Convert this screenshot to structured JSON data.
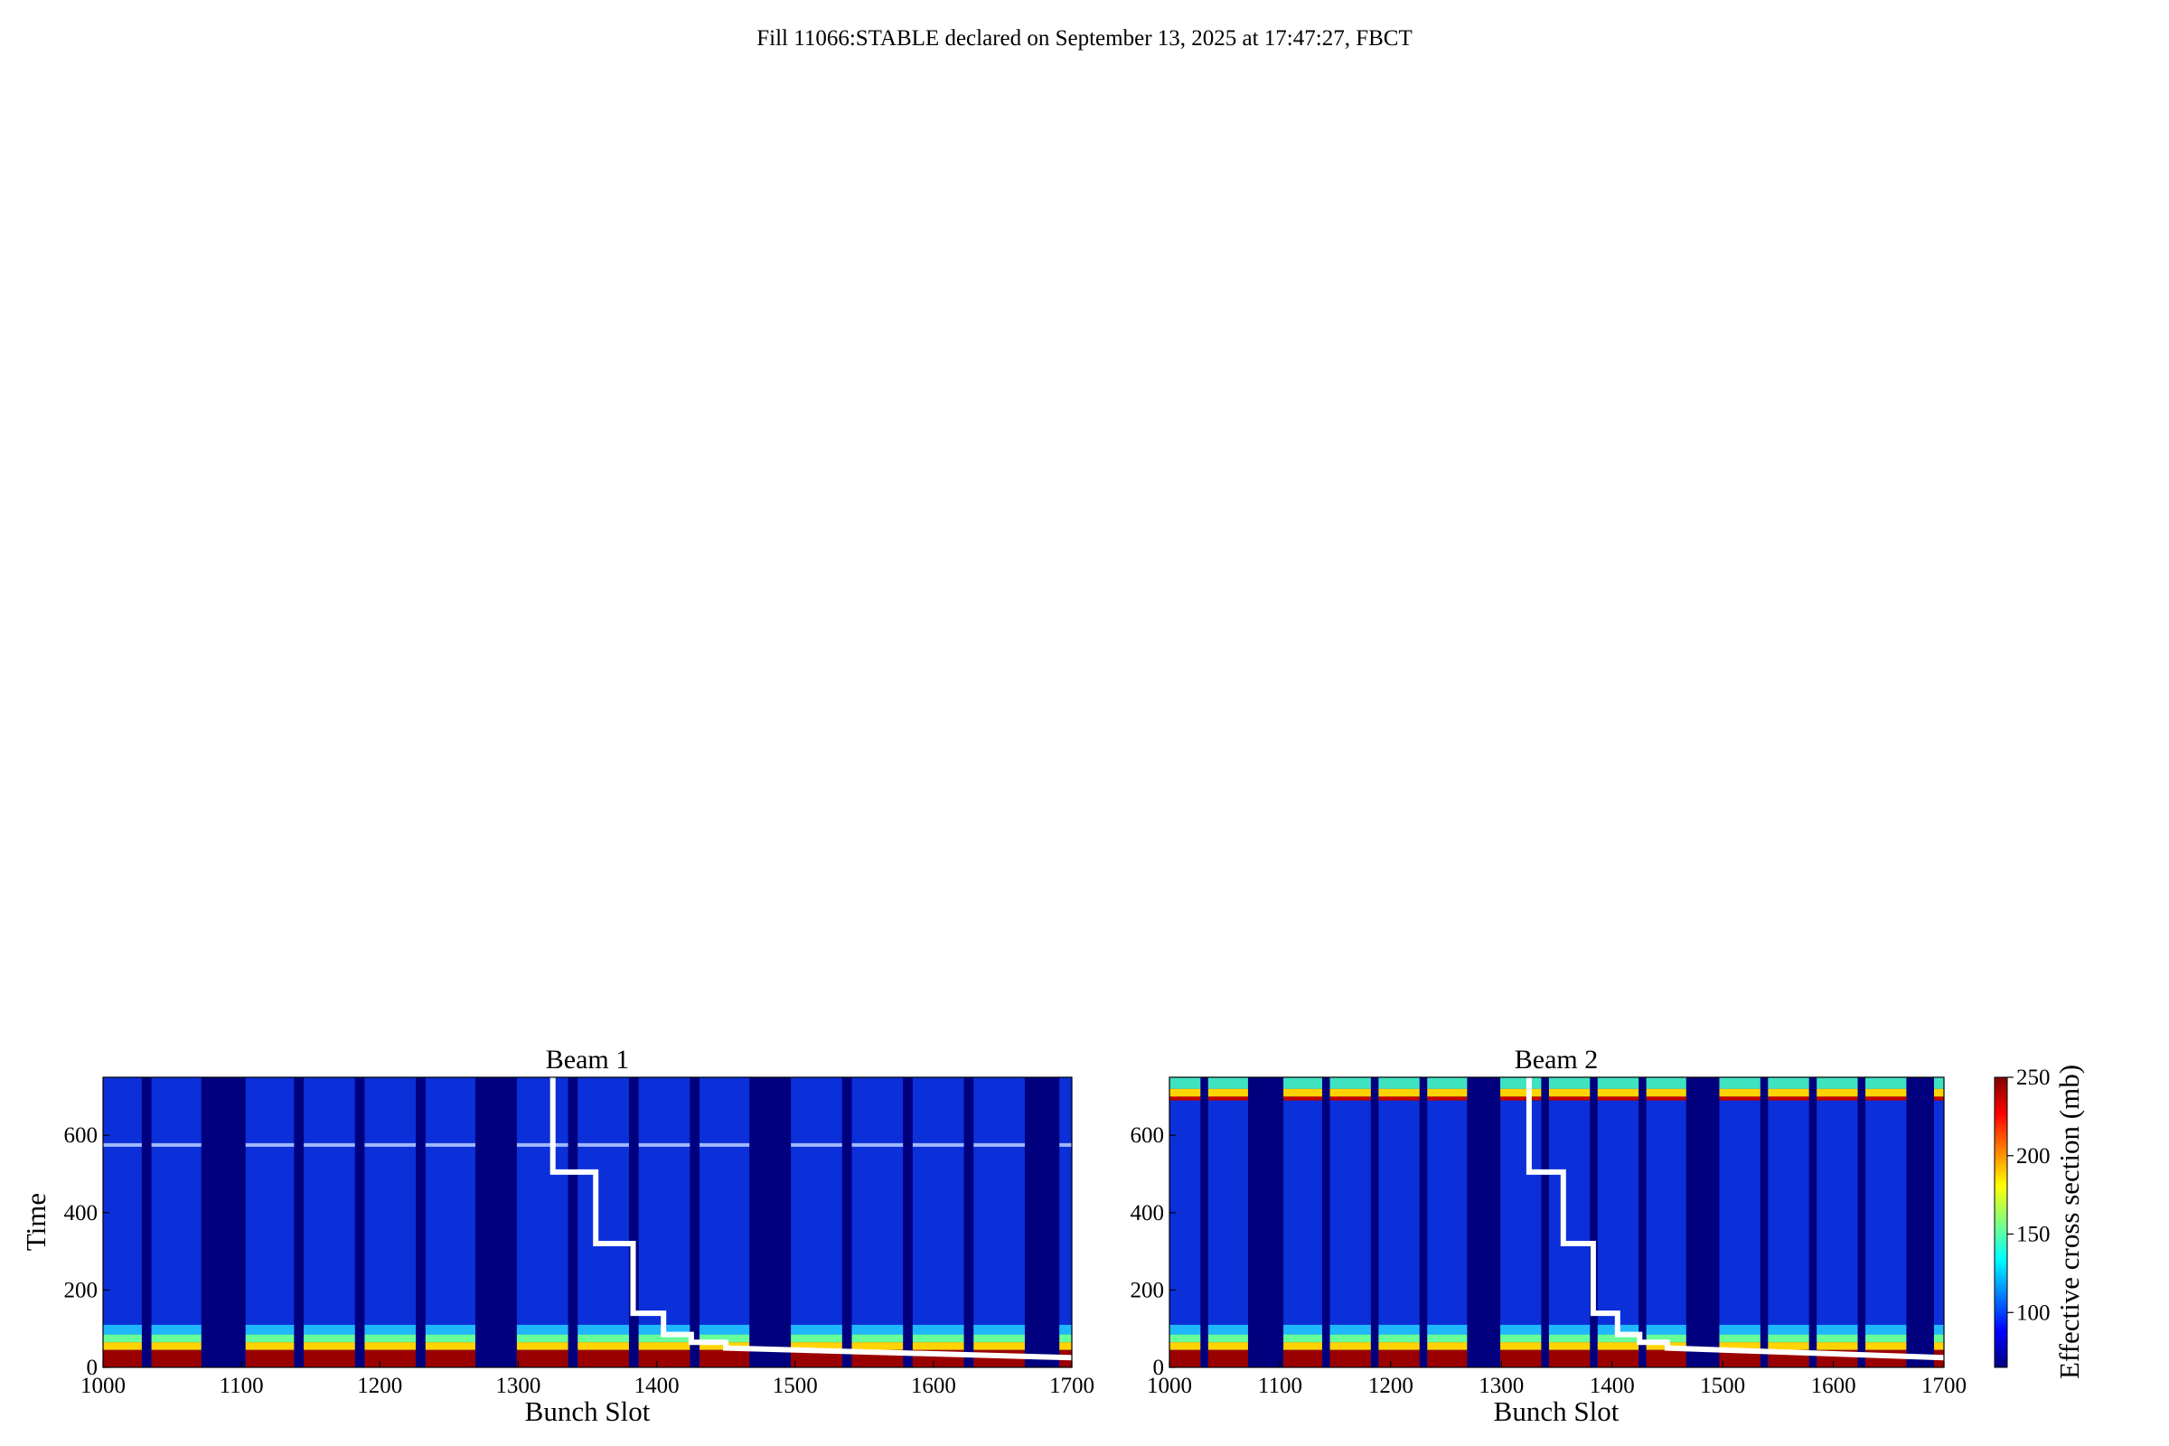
{
  "figure": {
    "suptitle": "Fill 11066:STABLE declared on September 13, 2025 at 17:47:27, FBCT"
  },
  "colors": {
    "background": "#ffffff",
    "gap": "#00007f",
    "low": "#0b2fd9",
    "curve": "#ffffff"
  },
  "colorbar": {
    "label": "Effective cross section (mb)",
    "range": [
      65,
      250
    ],
    "ticks": [
      "100",
      "150",
      "200",
      "250"
    ],
    "tick_values": [
      100,
      150,
      200,
      250
    ]
  },
  "chart_data": [
    {
      "type": "heatmap",
      "title": "Beam 1",
      "xlabel": "Bunch Slot",
      "ylabel": "Time",
      "xlim": [
        1000,
        1700
      ],
      "ylim": [
        0,
        750
      ],
      "xticks": [
        "1000",
        "1100",
        "1200",
        "1300",
        "1400",
        "1500",
        "1600",
        "1700"
      ],
      "yticks": [
        "0",
        "200",
        "400",
        "600"
      ],
      "filled_trains": [
        [
          1000,
          1028
        ],
        [
          1035,
          1071
        ],
        [
          1103,
          1138
        ],
        [
          1145,
          1182
        ],
        [
          1189,
          1226
        ],
        [
          1233,
          1269
        ],
        [
          1299,
          1336
        ],
        [
          1343,
          1380
        ],
        [
          1387,
          1424
        ],
        [
          1431,
          1467
        ],
        [
          1497,
          1534
        ],
        [
          1541,
          1578
        ],
        [
          1585,
          1622
        ],
        [
          1629,
          1666
        ],
        [
          1691,
          1700
        ]
      ],
      "horizontal_band_time": 575,
      "survival_curve": {
        "x": [
          1325,
          1325,
          1356,
          1356,
          1383,
          1383,
          1405,
          1405,
          1425,
          1425,
          1450,
          1450,
          1700
        ],
        "y": [
          750,
          505,
          505,
          320,
          320,
          140,
          140,
          85,
          85,
          65,
          65,
          50,
          25
        ]
      }
    },
    {
      "type": "heatmap",
      "title": "Beam 2",
      "xlabel": "Bunch Slot",
      "ylabel": "",
      "xlim": [
        1000,
        1700
      ],
      "ylim": [
        0,
        750
      ],
      "xticks": [
        "1000",
        "1100",
        "1200",
        "1300",
        "1400",
        "1500",
        "1600",
        "1700"
      ],
      "yticks": [
        "0",
        "200",
        "400",
        "600"
      ],
      "filled_trains": [
        [
          1000,
          1028
        ],
        [
          1035,
          1071
        ],
        [
          1103,
          1138
        ],
        [
          1145,
          1182
        ],
        [
          1189,
          1226
        ],
        [
          1233,
          1269
        ],
        [
          1299,
          1336
        ],
        [
          1343,
          1380
        ],
        [
          1387,
          1424
        ],
        [
          1431,
          1467
        ],
        [
          1497,
          1534
        ],
        [
          1541,
          1578
        ],
        [
          1585,
          1622
        ],
        [
          1629,
          1666
        ],
        [
          1691,
          1700
        ]
      ],
      "hot_top_trains": true,
      "survival_curve": {
        "x": [
          1325,
          1325,
          1356,
          1356,
          1383,
          1383,
          1405,
          1405,
          1425,
          1425,
          1450,
          1450,
          1700
        ],
        "y": [
          750,
          505,
          505,
          320,
          320,
          140,
          140,
          85,
          85,
          65,
          65,
          50,
          25
        ]
      }
    }
  ]
}
